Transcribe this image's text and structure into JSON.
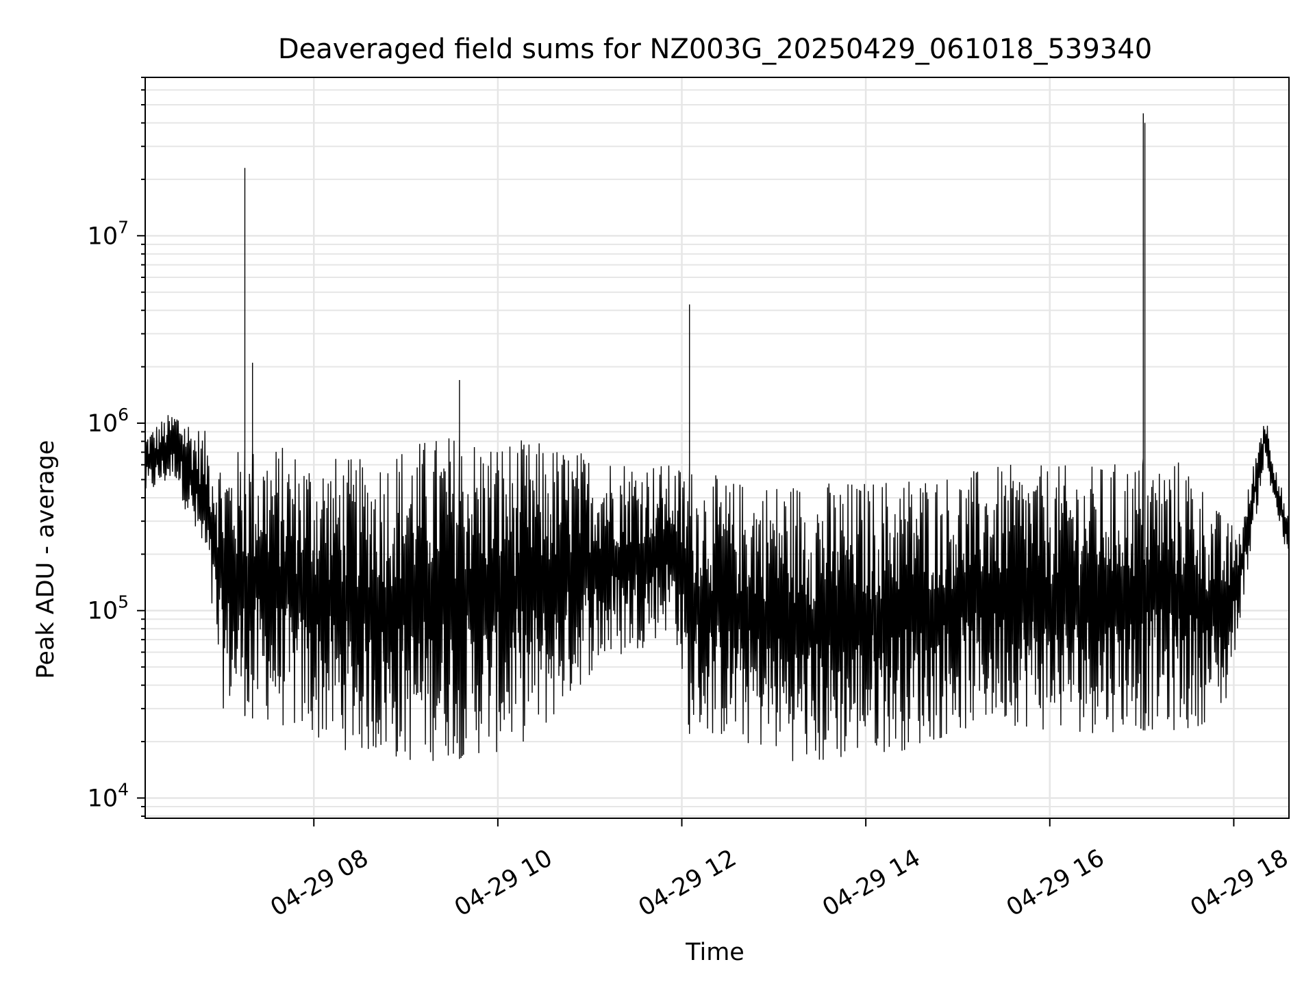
{
  "chart_data": {
    "type": "line",
    "title": "Deaveraged field sums for NZ003G_20250429_061018_539340",
    "xlabel": "Time",
    "ylabel": "Peak ADU - average",
    "yscale": "log",
    "ylim": [
      7800,
      70000000
    ],
    "xlim": [
      "2025-04-29 06:10",
      "2025-04-29 18:36"
    ],
    "grid": true,
    "grid_color": "#e6e6e6",
    "line_color": "#000000",
    "x_ticks": [
      {
        "label": "04-29 08",
        "x": "2025-04-29 08:00"
      },
      {
        "label": "04-29 10",
        "x": "2025-04-29 10:00"
      },
      {
        "label": "04-29 12",
        "x": "2025-04-29 12:00"
      },
      {
        "label": "04-29 14",
        "x": "2025-04-29 14:00"
      },
      {
        "label": "04-29 16",
        "x": "2025-04-29 16:00"
      },
      {
        "label": "04-29 18",
        "x": "2025-04-29 18:00"
      }
    ],
    "y_ticks": [
      {
        "base": "10",
        "exp": "4",
        "value": 10000
      },
      {
        "base": "10",
        "exp": "5",
        "value": 100000
      },
      {
        "base": "10",
        "exp": "6",
        "value": 1000000
      },
      {
        "base": "10",
        "exp": "7",
        "value": 10000000
      }
    ],
    "envelope": {
      "x": [
        "2025-04-29 06:10",
        "2025-04-29 06:30",
        "2025-04-29 06:50",
        "2025-04-29 07:00",
        "2025-04-29 07:30",
        "2025-04-29 08:00",
        "2025-04-29 08:30",
        "2025-04-29 09:00",
        "2025-04-29 09:30",
        "2025-04-29 10:00",
        "2025-04-29 10:30",
        "2025-04-29 11:00",
        "2025-04-29 11:30",
        "2025-04-29 11:55",
        "2025-04-29 12:05",
        "2025-04-29 12:30",
        "2025-04-29 13:00",
        "2025-04-29 13:30",
        "2025-04-29 14:00",
        "2025-04-29 14:30",
        "2025-04-29 15:00",
        "2025-04-29 15:30",
        "2025-04-29 16:00",
        "2025-04-29 16:30",
        "2025-04-29 17:00",
        "2025-04-29 17:30",
        "2025-04-29 17:55",
        "2025-04-29 18:05",
        "2025-04-29 18:20",
        "2025-04-29 18:36"
      ],
      "low": [
        400000,
        500000,
        150000,
        30000,
        25000,
        20000,
        17000,
        15000,
        16000,
        17000,
        22000,
        45000,
        60000,
        80000,
        22000,
        20000,
        17000,
        14000,
        17000,
        18000,
        22000,
        25000,
        22000,
        22000,
        23000,
        22000,
        30000,
        100000,
        600000,
        170000
      ],
      "high": [
        900000,
        1200000,
        900000,
        700000,
        800000,
        700000,
        650000,
        800000,
        900000,
        850000,
        800000,
        700000,
        650000,
        600000,
        600000,
        500000,
        500000,
        500000,
        500000,
        550000,
        550000,
        600000,
        600000,
        600000,
        650000,
        650000,
        300000,
        300000,
        1200000,
        300000
      ]
    },
    "spikes": [
      {
        "x": "2025-04-29 07:15",
        "y": 23000000
      },
      {
        "x": "2025-04-29 07:20",
        "y": 2100000
      },
      {
        "x": "2025-04-29 09:35",
        "y": 1700000
      },
      {
        "x": "2025-04-29 12:05",
        "y": 4300000
      },
      {
        "x": "2025-04-29 17:01",
        "y": 45000000
      },
      {
        "x": "2025-04-29 17:02",
        "y": 40000000
      }
    ]
  }
}
